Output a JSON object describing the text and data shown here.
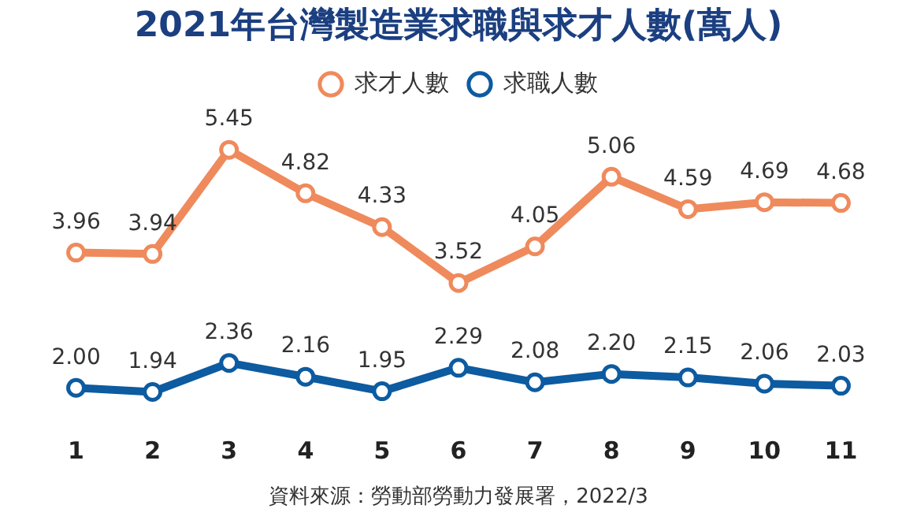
{
  "chart_data": {
    "type": "line",
    "title": "2021年台灣製造業求職與求才人數(萬人)",
    "categories": [
      "1",
      "2",
      "3",
      "4",
      "5",
      "6",
      "7",
      "8",
      "9",
      "10",
      "11"
    ],
    "series": [
      {
        "name": "求才人數",
        "color": "#ef8a5c",
        "values": [
          3.96,
          3.94,
          5.45,
          4.82,
          4.33,
          3.52,
          4.05,
          5.06,
          4.59,
          4.69,
          4.68
        ],
        "value_labels": [
          "3.96",
          "3.94",
          "5.45",
          "4.82",
          "4.33",
          "3.52",
          "4.05",
          "5.06",
          "4.59",
          "4.69",
          "4.68"
        ]
      },
      {
        "name": "求職人數",
        "color": "#0d5ba0",
        "values": [
          2.0,
          1.94,
          2.36,
          2.16,
          1.95,
          2.29,
          2.08,
          2.2,
          2.15,
          2.06,
          2.03
        ],
        "value_labels": [
          "2.00",
          "1.94",
          "2.36",
          "2.16",
          "1.95",
          "2.29",
          "2.08",
          "2.20",
          "2.15",
          "2.06",
          "2.03"
        ]
      }
    ],
    "legend": "top",
    "marker": "circle",
    "grid": false,
    "tick_labels": "x",
    "annotations": [
      "資料來源：勞動部勞動力發展署，2022/3"
    ]
  }
}
